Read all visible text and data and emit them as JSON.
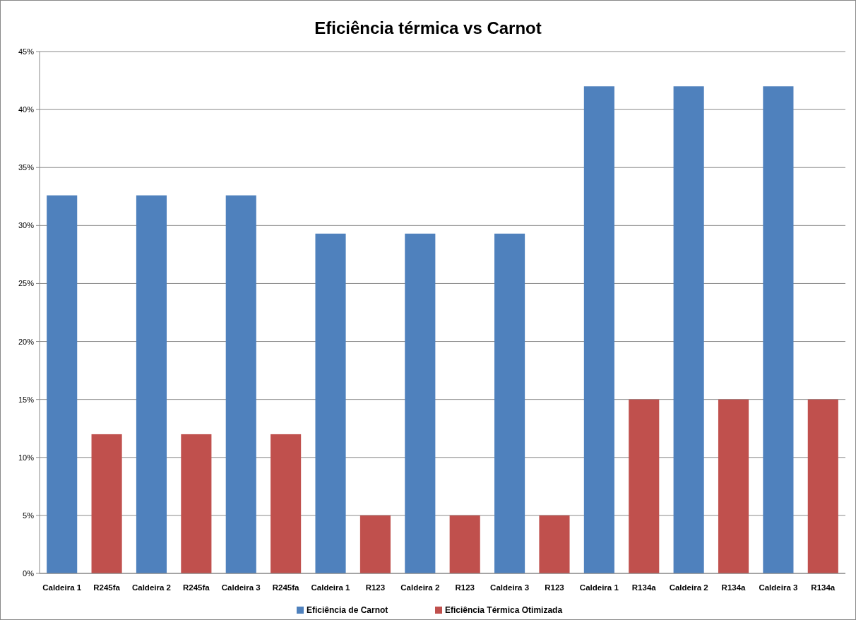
{
  "chart_data": {
    "type": "bar",
    "title": "Eficiência térmica vs Carnot",
    "categories": [
      "Caldeira 1",
      "R245fa",
      "Caldeira 2",
      "R245fa",
      "Caldeira 3",
      "R245fa",
      "Caldeira 1",
      "R123",
      "Caldeira 2",
      "R123",
      "Caldeira 3",
      "R123",
      "Caldeira 1",
      "R134a",
      "Caldeira 2",
      "R134a",
      "Caldeira 3",
      "R134a"
    ],
    "series": [
      {
        "name": "Eficiência de Carnot",
        "color": "#4f81bd",
        "values": [
          32.6,
          null,
          32.6,
          null,
          32.6,
          null,
          29.3,
          null,
          29.3,
          null,
          29.3,
          null,
          42,
          null,
          42,
          null,
          42,
          null
        ]
      },
      {
        "name": "Eficiência Térmica Otimizada",
        "color": "#c0504d",
        "values": [
          null,
          12,
          null,
          12,
          null,
          12,
          null,
          5,
          null,
          5,
          null,
          5,
          null,
          15,
          null,
          15,
          null,
          15
        ]
      }
    ],
    "stacked": true,
    "ylim": [
      0,
      45
    ],
    "yticks": [
      {
        "value": 0,
        "label": "0%"
      },
      {
        "value": 5,
        "label": "5%"
      },
      {
        "value": 10,
        "label": "10%"
      },
      {
        "value": 15,
        "label": "15%"
      },
      {
        "value": 20,
        "label": "20%"
      },
      {
        "value": 25,
        "label": "25%"
      },
      {
        "value": 30,
        "label": "30%"
      },
      {
        "value": 35,
        "label": "35%"
      },
      {
        "value": 40,
        "label": "40%"
      },
      {
        "value": 45,
        "label": "45%"
      }
    ],
    "grid": "y",
    "legend": "bottom"
  }
}
